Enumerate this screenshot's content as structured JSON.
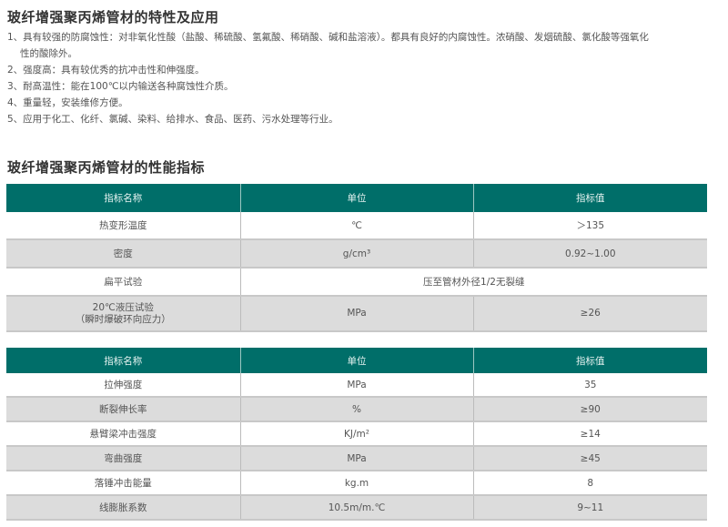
{
  "section1": {
    "title": "玻纤增强聚丙烯管材的特性及应用",
    "items": [
      "1、具有较强的防腐蚀性：对非氧化性酸（盐酸、稀硫酸、氢氟酸、稀硝酸、碱和盐溶液）。都具有良好的内腐蚀性。浓硝酸、发烟硫酸、氯化酸等强氧化",
      "性的酸除外。",
      "2、强度高：具有较优秀的抗冲击性和伸强度。",
      "3、耐高温性：能在100℃以内输送各种腐蚀性介质。",
      "4、重量轻，安装维修方便。",
      "5、应用于化工、化纤、氯碱、染料、给排水、食品、医药、污水处理等行业。"
    ]
  },
  "section2": {
    "title": "玻纤增强聚丙烯管材的性能指标"
  },
  "colors": {
    "header": "#006e69",
    "row_alt": "#dcdcdc"
  },
  "table1": {
    "headers": [
      "指标名称",
      "单位",
      "指标值"
    ],
    "rows": [
      [
        "热变形温度",
        "℃",
        "＞135"
      ],
      [
        "密度",
        "g/cm³",
        "0.92~1.00"
      ],
      [
        "扁平试验",
        "压至管材外径1/2无裂缝"
      ],
      [
        "20℃液压试验",
        "（瞬时爆破环向应力）",
        "MPa",
        "≥26"
      ]
    ]
  },
  "table2": {
    "headers": [
      "指标名称",
      "单位",
      "指标值"
    ],
    "rows": [
      [
        "拉伸强度",
        "MPa",
        "35"
      ],
      [
        "断裂伸长率",
        "%",
        "≥90"
      ],
      [
        "悬臂梁冲击强度",
        "KJ/m²",
        "≥14"
      ],
      [
        "弯曲强度",
        "MPa",
        "≥45"
      ],
      [
        "落锤冲击能量",
        "kg.m",
        "8"
      ],
      [
        "线膨胀系数",
        "10.5m/m.℃",
        "9~11"
      ]
    ]
  }
}
